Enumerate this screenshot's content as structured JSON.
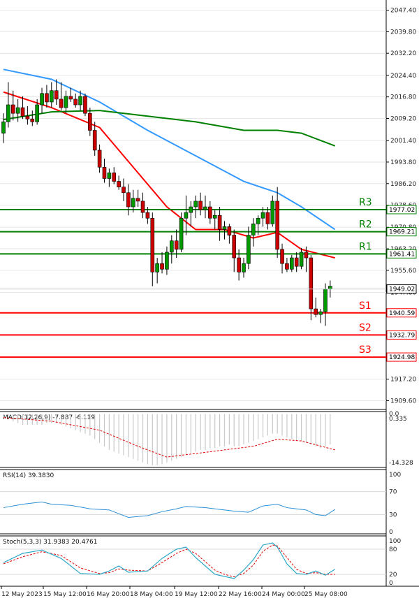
{
  "chart_data": {
    "type": "candlestick",
    "price_axis": {
      "ticks": [
        "2047.40",
        "2039.80",
        "2032.20",
        "2024.40",
        "2016.80",
        "2009.20",
        "2001.40",
        "1993.80",
        "1986.20",
        "1978.60",
        "1970.80",
        "1963.20",
        "1955.60",
        "1947.80",
        "1917.20",
        "1909.60"
      ],
      "range": [
        1907.0,
        2050.0
      ]
    },
    "time_axis": {
      "ticks": [
        "12 May 2023",
        "15 May 12:00",
        "16 May 20:00",
        "18 May 04:00",
        "19 May 12:00",
        "22 May 16:00",
        "24 May 00:00",
        "25 May 08:00"
      ]
    },
    "candles": [
      [
        2004.0,
        2011.0,
        2000.5,
        2008.0
      ],
      [
        2008.0,
        2022.0,
        2006.0,
        2014.0
      ],
      [
        2014.0,
        2019.0,
        2008.5,
        2011.0
      ],
      [
        2011.0,
        2016.0,
        2008.0,
        2013.0
      ],
      [
        2013.0,
        2017.0,
        2009.0,
        2010.0
      ],
      [
        2010.0,
        2013.5,
        2007.0,
        2009.0
      ],
      [
        2009.0,
        2012.0,
        2006.5,
        2008.0
      ],
      [
        2008.0,
        2016.0,
        2007.0,
        2014.0
      ],
      [
        2014.0,
        2020.0,
        2011.0,
        2018.0
      ],
      [
        2018.0,
        2021.0,
        2013.0,
        2015.0
      ],
      [
        2015.0,
        2022.0,
        2013.0,
        2019.0
      ],
      [
        2019.0,
        2023.0,
        2014.0,
        2016.0
      ],
      [
        2016.0,
        2022.0,
        2012.0,
        2013.0
      ],
      [
        2013.0,
        2019.0,
        2011.0,
        2017.0
      ],
      [
        2017.0,
        2020.0,
        2015.0,
        2016.0
      ],
      [
        2016.0,
        2018.0,
        2013.0,
        2014.0
      ],
      [
        2014.0,
        2019.0,
        2012.0,
        2017.0
      ],
      [
        2017.0,
        2018.0,
        2010.0,
        2011.0
      ],
      [
        2011.0,
        2013.0,
        2003.0,
        2005.0
      ],
      [
        2005.0,
        2008.0,
        1996.0,
        1998.0
      ],
      [
        1998.0,
        2000.0,
        1990.0,
        1992.0
      ],
      [
        1992.0,
        1995.0,
        1986.5,
        1988.0
      ],
      [
        1988.0,
        1991.5,
        1985.0,
        1990.0
      ],
      [
        1990.0,
        1992.0,
        1986.0,
        1987.0
      ],
      [
        1987.0,
        1989.0,
        1984.0,
        1985.0
      ],
      [
        1985.0,
        1988.0,
        1980.0,
        1983.0
      ],
      [
        1983.0,
        1986.0,
        1975.0,
        1978.0
      ],
      [
        1978.0,
        1984.0,
        1976.0,
        1981.0
      ],
      [
        1981.0,
        1984.0,
        1978.0,
        1980.0
      ],
      [
        1980.0,
        1983.0,
        1974.0,
        1976.0
      ],
      [
        1976.0,
        1978.0,
        1972.0,
        1974.0
      ],
      [
        1974.0,
        1976.0,
        1950.0,
        1955.0
      ],
      [
        1955.0,
        1960.0,
        1951.0,
        1958.0
      ],
      [
        1958.0,
        1962.0,
        1954.5,
        1956.0
      ],
      [
        1956.0,
        1964.0,
        1954.0,
        1962.0
      ],
      [
        1962.0,
        1968.0,
        1958.0,
        1966.0
      ],
      [
        1966.0,
        1970.0,
        1960.0,
        1963.0
      ],
      [
        1963.0,
        1976.0,
        1962.0,
        1974.0
      ],
      [
        1974.0,
        1982.0,
        1968.0,
        1976.0
      ],
      [
        1976.0,
        1980.0,
        1971.0,
        1978.0
      ],
      [
        1978.0,
        1982.0,
        1974.0,
        1980.0
      ],
      [
        1980.0,
        1983.0,
        1975.0,
        1977.0
      ],
      [
        1977.0,
        1982.0,
        1974.0,
        1978.0
      ],
      [
        1978.0,
        1980.0,
        1972.0,
        1974.0
      ],
      [
        1974.0,
        1977.0,
        1970.0,
        1975.0
      ],
      [
        1975.0,
        1978.0,
        1966.0,
        1970.0
      ],
      [
        1970.0,
        1973.0,
        1966.5,
        1971.0
      ],
      [
        1971.0,
        1972.0,
        1965.0,
        1968.0
      ],
      [
        1968.0,
        1970.0,
        1955.0,
        1960.0
      ],
      [
        1960.0,
        1963.0,
        1952.0,
        1955.0
      ],
      [
        1955.0,
        1960.0,
        1953.0,
        1958.0
      ],
      [
        1958.0,
        1971.0,
        1956.0,
        1968.0
      ],
      [
        1968.0,
        1974.0,
        1964.0,
        1972.0
      ],
      [
        1972.0,
        1975.0,
        1968.0,
        1974.0
      ],
      [
        1974.0,
        1978.0,
        1971.0,
        1976.0
      ],
      [
        1976.0,
        1978.0,
        1970.0,
        1972.0
      ],
      [
        1972.0,
        1982.0,
        1971.0,
        1980.0
      ],
      [
        1980.0,
        1985.0,
        1960.0,
        1963.0
      ],
      [
        1963.0,
        1965.0,
        1954.5,
        1958.0
      ],
      [
        1958.0,
        1960.0,
        1955.0,
        1956.0
      ],
      [
        1956.0,
        1961.0,
        1955.0,
        1960.0
      ],
      [
        1960.0,
        1962.0,
        1955.0,
        1957.0
      ],
      [
        1957.0,
        1963.5,
        1956.0,
        1962.0
      ],
      [
        1962.0,
        1964.0,
        1955.0,
        1960.0
      ],
      [
        1960.0,
        1961.0,
        1938.0,
        1942.0
      ],
      [
        1942.0,
        1946.0,
        1939.0,
        1940.0
      ],
      [
        1940.0,
        1942.0,
        1937.0,
        1941.0
      ],
      [
        1941.0,
        1951.0,
        1936.0,
        1949.0
      ],
      [
        1949.0,
        1952.0,
        1946.0,
        1950.0
      ]
    ],
    "levels": [
      {
        "name": "R3",
        "value": 1977.02,
        "label": "1977.02",
        "color": "#008000"
      },
      {
        "name": "R2",
        "value": 1969.21,
        "label": "1969.21",
        "color": "#008000"
      },
      {
        "name": "R1",
        "value": 1961.41,
        "label": "1961.41",
        "color": "#008000"
      },
      {
        "name": "S1",
        "value": 1940.59,
        "label": "1940.59",
        "color": "#ff0000"
      },
      {
        "name": "S2",
        "value": 1932.79,
        "label": "1932.79",
        "color": "#ff0000"
      },
      {
        "name": "S3",
        "value": 1924.98,
        "label": "1924.98",
        "color": "#ff0000"
      }
    ],
    "current_price": {
      "value": 1949.02,
      "label": "1949.02"
    },
    "moving_averages": [
      {
        "color": "#ff0000",
        "values": [
          [
            0,
            2018.5
          ],
          [
            10,
            2013
          ],
          [
            20,
            2006
          ],
          [
            28,
            1990
          ],
          [
            34,
            1978
          ],
          [
            40,
            1970
          ],
          [
            46,
            1970
          ],
          [
            52,
            1967
          ],
          [
            57,
            1969
          ],
          [
            62,
            1963
          ],
          [
            69,
            1960
          ]
        ]
      },
      {
        "color": "#3399ff",
        "values": [
          [
            0,
            2026.5
          ],
          [
            10,
            2023
          ],
          [
            20,
            2015
          ],
          [
            30,
            2005
          ],
          [
            40,
            1996
          ],
          [
            50,
            1987
          ],
          [
            57,
            1983
          ],
          [
            62,
            1978
          ],
          [
            69,
            1970
          ]
        ]
      },
      {
        "color": "#008000",
        "values": [
          [
            0,
            2008.8
          ],
          [
            10,
            2011.5
          ],
          [
            20,
            2012
          ],
          [
            30,
            2010
          ],
          [
            40,
            2008
          ],
          [
            50,
            2005
          ],
          [
            57,
            2005
          ],
          [
            62,
            2004
          ],
          [
            69,
            1999.5
          ]
        ]
      }
    ],
    "indicators": {
      "macd": {
        "label": "MACD(12,26,9) -7.887 -6.119",
        "scale_top": "0.0",
        "scale_second": "0.335",
        "scale_bottom": "-14.328",
        "histogram": [
          -1,
          -1.5,
          -2,
          -2.5,
          -3,
          -3,
          -3,
          -3,
          -3,
          -2.5,
          -2.5,
          -2.5,
          -3,
          -3.5,
          -4,
          -4.5,
          -5,
          -5.5,
          -6,
          -7,
          -8,
          -9,
          -10,
          -10.5,
          -11,
          -11.5,
          -12,
          -12.5,
          -13,
          -13.5,
          -14,
          -14.3,
          -14.3,
          -14,
          -13.5,
          -13,
          -12.5,
          -12,
          -11.5,
          -11,
          -10.5,
          -10,
          -10,
          -9.5,
          -9.5,
          -9,
          -9,
          -8.5,
          -9,
          -9,
          -8.5,
          -8,
          -7.5,
          -7,
          -6.5,
          -6,
          -5.5,
          -5.5,
          -6,
          -6.5,
          -7,
          -7.5,
          -7.5,
          -8,
          -8.5,
          -9,
          -9.5,
          -9,
          -8.5
        ],
        "signal": [
          [
            0,
            -1
          ],
          [
            10,
            -2
          ],
          [
            20,
            -4.5
          ],
          [
            28,
            -9
          ],
          [
            34,
            -12
          ],
          [
            40,
            -11
          ],
          [
            46,
            -10
          ],
          [
            52,
            -9
          ],
          [
            57,
            -7
          ],
          [
            62,
            -7.5
          ],
          [
            69,
            -10
          ]
        ],
        "range": [
          -14.5,
          0.5
        ]
      },
      "rsi": {
        "label": "RSI(14) 39.3830",
        "ticks": [
          "100",
          "70",
          "30",
          "0"
        ],
        "values": [
          [
            0,
            42
          ],
          [
            4,
            48
          ],
          [
            8,
            52
          ],
          [
            10,
            48
          ],
          [
            14,
            46
          ],
          [
            18,
            40
          ],
          [
            22,
            38
          ],
          [
            26,
            25
          ],
          [
            30,
            28
          ],
          [
            33,
            35
          ],
          [
            36,
            40
          ],
          [
            38,
            44
          ],
          [
            42,
            42
          ],
          [
            44,
            40
          ],
          [
            48,
            36
          ],
          [
            51,
            34
          ],
          [
            54,
            45
          ],
          [
            57,
            48
          ],
          [
            59,
            42
          ],
          [
            61,
            40
          ],
          [
            63,
            38
          ],
          [
            65,
            30
          ],
          [
            67,
            28
          ],
          [
            69,
            39
          ]
        ],
        "range": [
          0,
          100
        ]
      },
      "stoch": {
        "label": "Stoch(5,3,3) 31.9383 20.4761",
        "ticks": [
          "100",
          "80",
          "20",
          "0"
        ],
        "k": [
          [
            0,
            48
          ],
          [
            4,
            70
          ],
          [
            8,
            78
          ],
          [
            12,
            58
          ],
          [
            16,
            22
          ],
          [
            20,
            20
          ],
          [
            22,
            28
          ],
          [
            24,
            40
          ],
          [
            26,
            25
          ],
          [
            30,
            28
          ],
          [
            33,
            58
          ],
          [
            36,
            80
          ],
          [
            38,
            85
          ],
          [
            40,
            60
          ],
          [
            42,
            40
          ],
          [
            44,
            20
          ],
          [
            46,
            15
          ],
          [
            48,
            10
          ],
          [
            50,
            30
          ],
          [
            52,
            55
          ],
          [
            54,
            90
          ],
          [
            56,
            95
          ],
          [
            57,
            85
          ],
          [
            59,
            45
          ],
          [
            61,
            22
          ],
          [
            63,
            20
          ],
          [
            65,
            28
          ],
          [
            67,
            18
          ],
          [
            69,
            32
          ]
        ],
        "d": [
          [
            0,
            45
          ],
          [
            4,
            62
          ],
          [
            8,
            74
          ],
          [
            12,
            65
          ],
          [
            16,
            35
          ],
          [
            20,
            22
          ],
          [
            22,
            24
          ],
          [
            24,
            33
          ],
          [
            26,
            30
          ],
          [
            30,
            28
          ],
          [
            33,
            48
          ],
          [
            36,
            70
          ],
          [
            38,
            80
          ],
          [
            40,
            70
          ],
          [
            42,
            50
          ],
          [
            44,
            30
          ],
          [
            46,
            20
          ],
          [
            48,
            14
          ],
          [
            50,
            22
          ],
          [
            52,
            42
          ],
          [
            54,
            75
          ],
          [
            56,
            90
          ],
          [
            57,
            88
          ],
          [
            59,
            60
          ],
          [
            61,
            32
          ],
          [
            63,
            22
          ],
          [
            65,
            24
          ],
          [
            67,
            20
          ],
          [
            69,
            20
          ]
        ],
        "range": [
          0,
          100
        ]
      }
    }
  }
}
